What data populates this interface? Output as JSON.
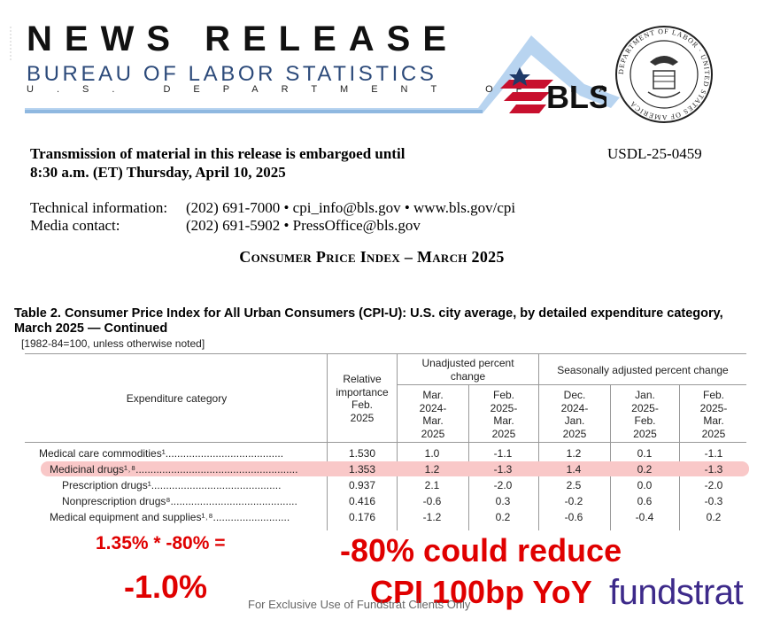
{
  "header": {
    "title": "NEWS RELEASE",
    "bureau": "BUREAU OF LABOR STATISTICS",
    "department": "U.S. DEPARTMENT OF LABOR",
    "bls_logo_text": "BLS",
    "seal_text": "DEPARTMENT OF LABOR · UNITED STATES OF AMERICA"
  },
  "release": {
    "embargo_line1": "Transmission of material in this release is embargoed until",
    "embargo_line2": "8:30 a.m. (ET) Thursday, April 10, 2025",
    "release_id": "USDL-25-0459",
    "tech_label": "Technical information:",
    "tech_value": "(202) 691-7000  •  cpi_info@bls.gov  •  www.bls.gov/cpi",
    "media_label": "Media contact:",
    "media_value": "(202) 691-5902  •  PressOffice@bls.gov",
    "title": "Consumer Price Index – March 2025"
  },
  "table": {
    "title": "Table 2. Consumer Price Index for All Urban Consumers (CPI-U): U.S. city average, by detailed expenditure category, March 2025 — Continued",
    "note": "[1982-84=100, unless otherwise noted]",
    "col_category": "Expenditure category",
    "col_relative": [
      "Relative",
      "importance",
      "Feb.",
      "2025"
    ],
    "group_unadjusted": [
      "Unadjusted percent",
      "change"
    ],
    "group_seasonal": "Seasonally adjusted percent change",
    "col_unadj_1": [
      "Mar.",
      "2024-",
      "Mar.",
      "2025"
    ],
    "col_unadj_2": [
      "Feb.",
      "2025-",
      "Mar.",
      "2025"
    ],
    "col_sa_1": [
      "Dec.",
      "2024-",
      "Jan.",
      "2025"
    ],
    "col_sa_2": [
      "Jan.",
      "2025-",
      "Feb.",
      "2025"
    ],
    "col_sa_3": [
      "Feb.",
      "2025-",
      "Mar.",
      "2025"
    ],
    "rows": [
      {
        "label": "Medical care commodities¹",
        "leader": "........................................",
        "values": [
          "1.530",
          "1.0",
          "-1.1",
          "1.2",
          "0.1",
          "-1.1"
        ]
      },
      {
        "label": "Medicinal drugs¹˒⁸",
        "leader": ".......................................................",
        "values": [
          "1.353",
          "1.2",
          "-1.3",
          "1.4",
          "0.2",
          "-1.3"
        ]
      },
      {
        "label": "Prescription drugs¹",
        "leader": "............................................",
        "values": [
          "0.937",
          "2.1",
          "-2.0",
          "2.5",
          "0.0",
          "-2.0"
        ]
      },
      {
        "label": "Nonprescription drugs⁸",
        "leader": "...........................................",
        "values": [
          "0.416",
          "-0.6",
          "0.3",
          "-0.2",
          "0.6",
          "-0.3"
        ]
      },
      {
        "label": "Medical equipment and supplies¹˒⁸",
        "leader": "..........................",
        "values": [
          "0.176",
          "-1.2",
          "0.2",
          "-0.6",
          "-0.4",
          "0.2"
        ]
      }
    ]
  },
  "annotations": {
    "formula": "1.35% * -80% =",
    "result": "-1.0%",
    "reduce_line1": "-80% could reduce",
    "reduce_line2": "CPI 100bp YoY",
    "brand": "fundstrat",
    "footer": "For Exclusive Use of Fundstrat Clients Only"
  },
  "colors": {
    "annotation_red": "#e00000",
    "highlight": "#f9c8c8",
    "brand_purple": "#3d2a8a",
    "bls_red": "#c8102e",
    "bls_blue": "#1f3a68"
  }
}
